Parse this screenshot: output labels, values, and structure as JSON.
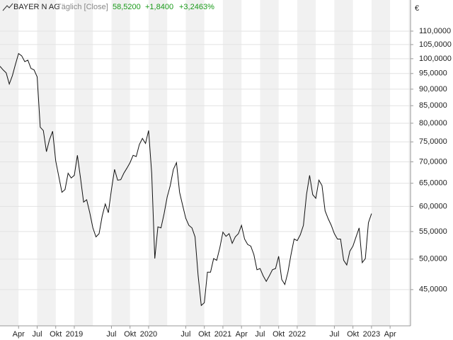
{
  "chart_data": {
    "type": "line",
    "subtitle": "Täglich [Close]",
    "last": "58,5200",
    "change": "+1,8400",
    "change_pct": "+3,2463%",
    "currency": "€",
    "x": [
      0,
      0.5,
      1,
      1.5,
      2,
      2.5,
      3,
      3.5,
      4,
      4.5,
      5,
      5.5,
      6,
      6.5,
      7,
      7.5,
      8,
      8.5,
      9,
      9.5,
      10,
      10.5,
      11,
      11.5,
      12,
      12.5,
      13,
      13.5,
      14,
      14.5,
      15,
      15.5,
      16,
      16.5,
      17,
      17.5,
      18,
      18.5,
      19,
      19.5,
      20,
      20.5,
      21,
      21.5,
      22,
      22.5,
      23,
      23.5,
      24,
      24.5,
      25,
      25.5,
      26,
      26.5,
      27,
      27.5,
      28,
      28.5,
      29,
      29.5,
      30,
      30.5,
      31,
      31.5,
      32,
      32.5,
      33,
      33.5,
      34,
      34.5,
      35,
      35.5,
      36,
      36.5,
      37,
      37.5,
      38,
      38.5,
      39,
      39.5,
      40,
      40.5,
      41,
      41.5,
      42,
      42.5,
      43,
      43.5,
      44,
      44.5,
      45,
      45.5,
      46,
      46.5,
      47,
      47.5,
      48,
      48.5,
      49,
      49.5,
      50,
      50.5,
      51,
      51.5,
      52,
      52.5,
      53,
      53.5,
      54,
      54.5,
      55,
      55.5,
      56,
      56.5,
      57,
      57.5,
      58,
      58.5,
      59,
      59.5,
      60
    ],
    "series": [
      {
        "name": "BAYER N AG",
        "color": "#111111",
        "values": [
          97.4,
          96.2,
          95.2,
          91.6,
          94.3,
          98.1,
          101.8,
          101,
          99.0,
          99.5,
          96.7,
          96.2,
          93.9,
          78.9,
          78.0,
          72.5,
          75.6,
          77.8,
          70.2,
          66.5,
          63.0,
          63.6,
          67.3,
          66.2,
          66.8,
          71.6,
          66.2,
          60.9,
          61.4,
          58.7,
          55.7,
          54.0,
          54.6,
          58.0,
          60.5,
          58.7,
          63.6,
          68.2,
          65.7,
          65.8,
          67.3,
          68.5,
          69.8,
          71.6,
          71.3,
          74.3,
          75.9,
          74.6,
          78.0,
          67.3,
          50.1,
          55.9,
          55.7,
          58.5,
          62.0,
          64.5,
          68.2,
          69.8,
          63.0,
          60.2,
          57.6,
          56.2,
          55.7,
          54.0,
          47.2,
          42.6,
          43.0,
          47.8,
          47.8,
          50.1,
          49.8,
          52.0,
          54.9,
          54.1,
          54.6,
          52.8,
          54.0,
          54.6,
          56.2,
          53.6,
          52.6,
          52.3,
          50.8,
          48.2,
          48.4,
          47.2,
          46.3,
          47.2,
          48.2,
          48.4,
          50.5,
          46.6,
          45.8,
          47.8,
          50.8,
          53.6,
          53.3,
          54.4,
          56.2,
          62.5,
          66.8,
          62.5,
          61.7,
          65.7,
          64.5,
          59.1,
          57.5,
          56.2,
          54.6,
          53.6,
          53.6,
          49.8,
          49.0,
          51.4,
          52.3,
          54.0,
          55.7,
          49.4,
          50.1,
          56.7,
          58.52
        ]
      }
    ],
    "xlim": [
      0,
      66.3
    ],
    "xticks": [
      {
        "value": 3,
        "label": "Apr"
      },
      {
        "value": 6,
        "label": "Jul"
      },
      {
        "value": 9,
        "label": "Okt"
      },
      {
        "value": 12,
        "label": "2019"
      },
      {
        "value": 18,
        "label": "Jul"
      },
      {
        "value": 21,
        "label": "Okt"
      },
      {
        "value": 24,
        "label": "2020"
      },
      {
        "value": 30,
        "label": "Jul"
      },
      {
        "value": 33,
        "label": "Okt"
      },
      {
        "value": 36,
        "label": "2021"
      },
      {
        "value": 39,
        "label": "Apr"
      },
      {
        "value": 42,
        "label": "Jul"
      },
      {
        "value": 45,
        "label": "Okt"
      },
      {
        "value": 48,
        "label": "2022"
      },
      {
        "value": 54,
        "label": "Jul"
      },
      {
        "value": 57,
        "label": "Okt"
      },
      {
        "value": 60,
        "label": "2023"
      },
      {
        "value": 63,
        "label": "Apr"
      }
    ],
    "ylim": [
      39.7,
      122.5
    ],
    "log": true,
    "grid": true,
    "yticks": [
      {
        "value": 45,
        "label": "45,0000"
      },
      {
        "value": 50,
        "label": "50,0000"
      },
      {
        "value": 55,
        "label": "55,0000"
      },
      {
        "value": 60,
        "label": "60,0000"
      },
      {
        "value": 65,
        "label": "65,0000"
      },
      {
        "value": 70,
        "label": "70,0000"
      },
      {
        "value": 75,
        "label": "75,0000"
      },
      {
        "value": 80,
        "label": "80,0000"
      },
      {
        "value": 85,
        "label": "85,0000"
      },
      {
        "value": 90,
        "label": "90,0000"
      },
      {
        "value": 95,
        "label": "95,0000"
      },
      {
        "value": 100,
        "label": "100,0000"
      },
      {
        "value": 105,
        "label": "105,0000"
      },
      {
        "value": 110,
        "label": "110,0000"
      }
    ]
  }
}
